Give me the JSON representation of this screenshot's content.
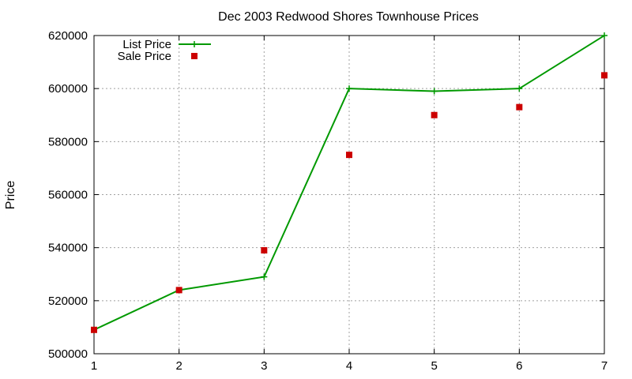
{
  "chart_data": {
    "type": "line",
    "title": "Dec 2003 Redwood Shores Townhouse Prices",
    "xlabel": "",
    "ylabel": "Price",
    "x": [
      1,
      2,
      3,
      4,
      5,
      6,
      7
    ],
    "xlim": [
      1,
      7
    ],
    "ylim": [
      500000,
      620000
    ],
    "xticks": [
      "1",
      "2",
      "3",
      "4",
      "5",
      "6",
      "7"
    ],
    "yticks": [
      "500000",
      "520000",
      "540000",
      "560000",
      "580000",
      "600000",
      "620000"
    ],
    "grid": true,
    "legend_position": "top-left",
    "series": [
      {
        "name": "List Price",
        "style": "line-with-plus-markers",
        "color": "#009900",
        "values": [
          509000,
          524000,
          529000,
          600000,
          599000,
          600000,
          620000
        ]
      },
      {
        "name": "Sale Price",
        "style": "square-markers",
        "color": "#cc0000",
        "values": [
          509000,
          524000,
          539000,
          575000,
          590000,
          593000,
          605000
        ]
      }
    ]
  }
}
